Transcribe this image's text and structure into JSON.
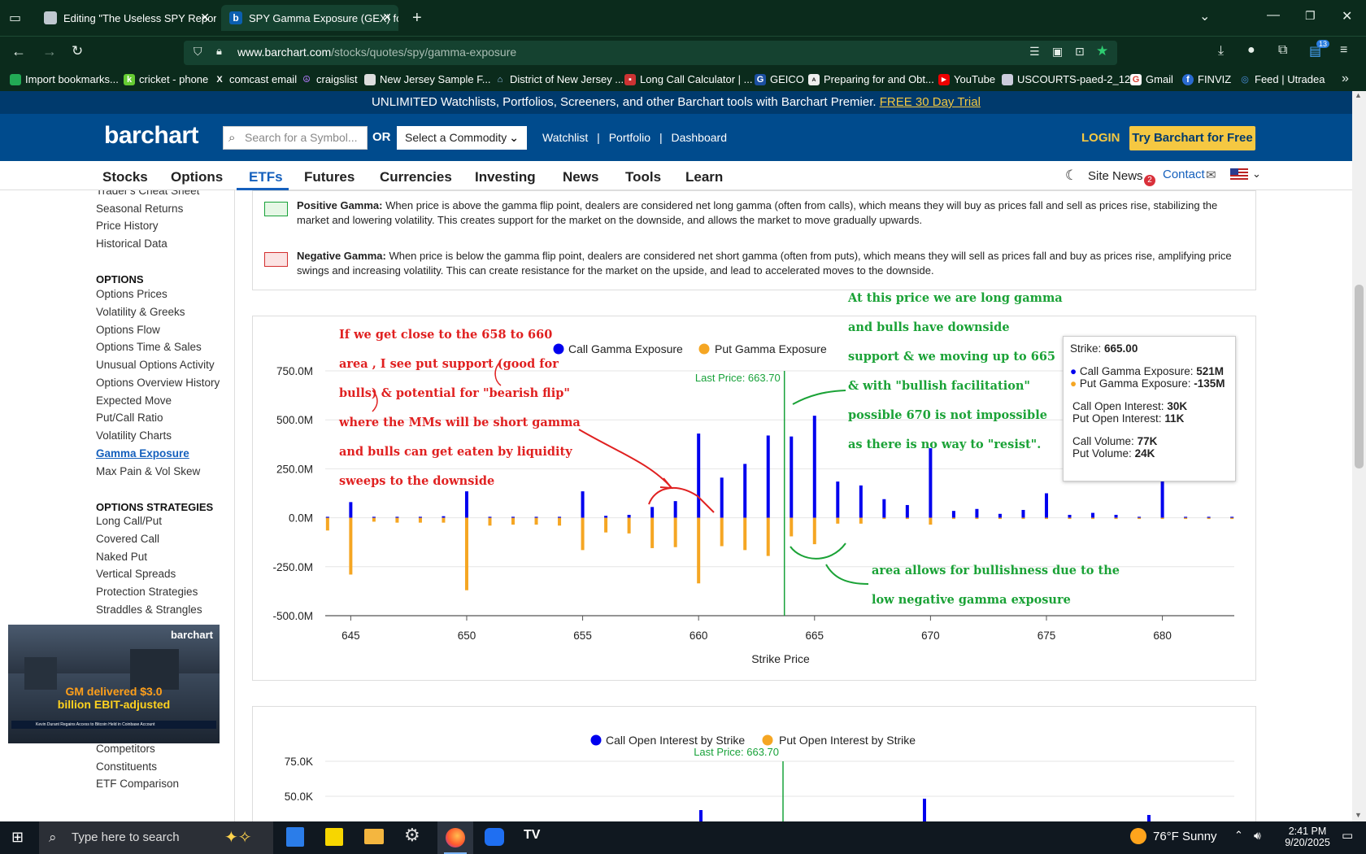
{
  "browser": {
    "tabs": [
      {
        "title": "Editing \"The Useless SPY Report",
        "close": "✕"
      },
      {
        "title": "SPY Gamma Exposure (GEX) for",
        "close": "✕"
      }
    ],
    "new_tab": "+",
    "url_domain": "www.barchart.com",
    "url_path": "/stocks/quotes/spy/gamma-exposure",
    "badge_count": "13",
    "bookmarks": [
      {
        "label": "Import bookmarks...",
        "icon": "import-icon",
        "color": "#2a5"
      },
      {
        "label": "cricket - phone",
        "icon": "k-icon",
        "color": "#6c3"
      },
      {
        "label": "comcast email",
        "icon": "x-icon",
        "color": "#000"
      },
      {
        "label": "craigslist",
        "icon": "peace-icon",
        "color": "#8a2be2"
      },
      {
        "label": "New Jersey Sample F...",
        "icon": "doc-icon",
        "color": "#666"
      },
      {
        "label": "District of New Jersey ...",
        "icon": "court-icon",
        "color": "#3a6ea5"
      },
      {
        "label": "Long Call Calculator | ...",
        "icon": "calc-icon",
        "color": "#c33"
      },
      {
        "label": "GEICO",
        "icon": "g-icon",
        "color": "#1b4fa0"
      },
      {
        "label": "Preparing for and Obt...",
        "icon": "aea-icon",
        "color": "#555"
      },
      {
        "label": "YouTube",
        "icon": "youtube-icon",
        "color": "#e00"
      },
      {
        "label": "USCOURTS-paed-2_12...",
        "icon": "doc-icon",
        "color": "#3a6ea5"
      },
      {
        "label": "Gmail",
        "icon": "google-icon",
        "color": "#db4437"
      },
      {
        "label": "FINVIZ",
        "icon": "f-icon",
        "color": "#2a6ad0"
      },
      {
        "label": "Feed | Utradea",
        "icon": "feed-icon",
        "color": "#4a90e2"
      }
    ]
  },
  "site": {
    "promo_text": "UNLIMITED Watchlists, Portfolios, Screeners, and other Barchart tools with Barchart Premier.",
    "promo_link": "FREE 30 Day Trial",
    "logo": "barchart",
    "search_placeholder": "Search for a Symbol...",
    "or": "OR",
    "commodity_select": "Select a Commodity",
    "header_links": [
      "Watchlist",
      "Portfolio",
      "Dashboard"
    ],
    "login": "LOGIN",
    "try_button": "Try Barchart for Free",
    "nav": [
      "Stocks",
      "Options",
      "ETFs",
      "Futures",
      "Currencies",
      "Investing",
      "News",
      "Tools",
      "Learn"
    ],
    "site_news": "Site News",
    "site_news_count": "2",
    "contact": "Contact"
  },
  "sidebar": {
    "top_items": [
      "Trader's Cheat Sheet",
      "Seasonal Returns",
      "Price History",
      "Historical Data"
    ],
    "options_heading": "OPTIONS",
    "options_items": [
      "Options Prices",
      "Volatility & Greeks",
      "Options Flow",
      "Options Time & Sales",
      "Unusual Options Activity",
      "Options Overview History",
      "Expected Move",
      "Put/Call Ratio",
      "Volatility Charts",
      "Gamma Exposure",
      "Max Pain & Vol Skew"
    ],
    "strategies_heading": "OPTIONS STRATEGIES",
    "strategies_items": [
      "Long Call/Put",
      "Covered Call",
      "Naked Put",
      "Vertical Spreads",
      "Protection Strategies",
      "Straddles & Strangles"
    ],
    "bottom_items": [
      "Competitors",
      "Constituents",
      "ETF Comparison"
    ]
  },
  "legend_box": {
    "positive_title": "Positive Gamma:",
    "positive_text": "When price is above the gamma flip point, dealers are considered net long gamma (often from calls), which means they will buy as prices fall and sell as prices rise, stabilizing the market and lowering volatility. This creates support for the market on the downside, and allows the market to move gradually upwards.",
    "negative_title": "Negative Gamma:",
    "negative_text": "When price is below the gamma flip point, dealers are considered net short gamma (often from puts), which means they will sell as prices fall and buy as prices rise, amplifying price swings and increasing volatility. This can create resistance for the market on the upside, and lead to accelerated moves to the downside.",
    "positive_color": "#e6f7e6",
    "negative_color": "#fbe3e3"
  },
  "chart_data": [
    {
      "type": "bar",
      "legend": [
        "Call Gamma Exposure",
        "Put Gamma Exposure"
      ],
      "colors": {
        "call": "#0000ee",
        "put": "#f5a623",
        "last_price": "#18a23a"
      },
      "xlabel": "Strike Price",
      "ylabel": "",
      "ylim": [
        -500000000,
        750000000
      ],
      "y_ticks": [
        "750.0M",
        "500.0M",
        "250.0M",
        "0.0M",
        "-250.0M",
        "-500.0M"
      ],
      "x_ticks": [
        "645",
        "650",
        "655",
        "660",
        "665",
        "670",
        "675",
        "680"
      ],
      "xlim": [
        643.9,
        683.1
      ],
      "last_price_label": "Last Price: 663.70",
      "last_price": 663.7,
      "strikes": [
        644,
        645,
        646,
        647,
        648,
        649,
        650,
        651,
        652,
        653,
        654,
        655,
        656,
        657,
        658,
        659,
        660,
        661,
        662,
        663,
        664,
        665,
        666,
        667,
        668,
        669,
        670,
        671,
        672,
        673,
        674,
        675,
        676,
        677,
        678,
        679,
        680,
        681,
        682,
        683
      ],
      "series": [
        {
          "name": "Call Gamma Exposure",
          "values": [
            5,
            80,
            5,
            5,
            5,
            8,
            135,
            5,
            5,
            5,
            5,
            135,
            10,
            15,
            55,
            85,
            430,
            205,
            275,
            420,
            415,
            521,
            185,
            165,
            95,
            65,
            355,
            35,
            45,
            20,
            40,
            125,
            15,
            25,
            15,
            5,
            200,
            5,
            5,
            5
          ]
        },
        {
          "name": "Put Gamma Exposure",
          "values": [
            -65,
            -290,
            -20,
            -25,
            -25,
            -25,
            -370,
            -40,
            -35,
            -35,
            -40,
            -165,
            -75,
            -80,
            -155,
            -150,
            -335,
            -145,
            -165,
            -195,
            -95,
            -135,
            -30,
            -30,
            -5,
            -5,
            -35,
            -5,
            -5,
            -5,
            -5,
            -5,
            -5,
            -5,
            -5,
            -5,
            -5,
            -5,
            -5,
            -5
          ]
        }
      ],
      "values_unit": "M",
      "tooltip": {
        "strike_label": "Strike:",
        "strike": "665.00",
        "call_gex_label": "Call Gamma Exposure:",
        "call_gex": "521M",
        "put_gex_label": "Put Gamma Exposure:",
        "put_gex": "-135M",
        "call_oi_label": "Call Open Interest:",
        "call_oi": "30K",
        "put_oi_label": "Put Open Interest:",
        "put_oi": "11K",
        "call_vol_label": "Call Volume:",
        "call_vol": "77K",
        "put_vol_label": "Put Volume:",
        "put_vol": "24K"
      }
    },
    {
      "type": "bar",
      "legend": [
        "Call Open Interest by Strike",
        "Put Open Interest by Strike"
      ],
      "y_ticks": [
        "75.0K",
        "50.0K"
      ],
      "last_price_label": "Last Price: 663.70"
    }
  ],
  "annotations": {
    "red_lines": [
      "If we get close to the 658 to 660",
      "area , I see put support (good for",
      "bulls) & potential for \"bearish flip\"",
      "where the MMs will be short gamma",
      "and bulls can get eaten by liquidity",
      "sweeps to the downside"
    ],
    "green_lines": [
      "At this price we are long gamma",
      "and bulls have downside",
      "support & we moving up to 665",
      "& with \"bullish facilitation\"",
      "possible 670 is not impossible",
      "as there is no way to \"resist\"."
    ],
    "green_bottom_lines": [
      "area allows for bullishness due to the",
      "low negative gamma exposure"
    ]
  },
  "video": {
    "brand": "barchart",
    "caption_line1": "GM delivered $3.0",
    "caption_line2": "billion EBIT-adjusted",
    "ticker": "Kevin Durant Regains Access to Bitcoin Held in Coinbase Account"
  },
  "taskbar": {
    "search_placeholder": "Type here to search",
    "weather": "76°F  Sunny",
    "time": "2:41 PM",
    "date": "9/20/2025"
  }
}
